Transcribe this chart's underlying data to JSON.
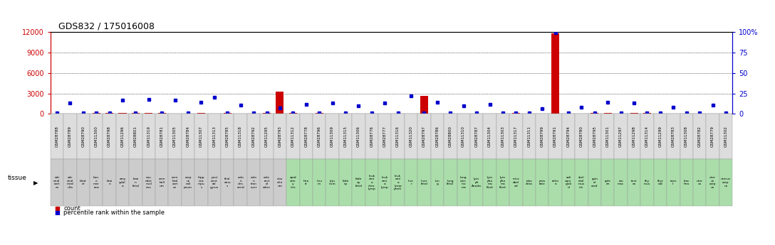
{
  "title": "GDS832 / 175016008",
  "left_color": "#cc0000",
  "right_color": "#0000cc",
  "left_ylim": [
    0,
    12000
  ],
  "right_ylim": [
    0,
    100
  ],
  "left_yticks": [
    0,
    3000,
    6000,
    9000,
    12000
  ],
  "right_yticks": [
    0,
    25,
    50,
    75,
    100
  ],
  "samples": [
    "GSM28788",
    "GSM28789",
    "GSM28790",
    "GSM11300",
    "GSM28798",
    "GSM11296",
    "GSM28801",
    "GSM11319",
    "GSM28781",
    "GSM11305",
    "GSM28784",
    "GSM11307",
    "GSM11313",
    "GSM28785",
    "GSM11318",
    "GSM28792",
    "GSM11295",
    "GSM28793",
    "GSM11312",
    "GSM28778",
    "GSM28796",
    "GSM11309",
    "GSM11315",
    "GSM11306",
    "GSM28776",
    "GSM28777",
    "GSM11316",
    "GSM11320",
    "GSM28797",
    "GSM28786",
    "GSM28800",
    "GSM11310",
    "GSM28787",
    "GSM11304",
    "GSM11303",
    "GSM11317",
    "GSM11311",
    "GSM28799",
    "GSM28791",
    "GSM28794",
    "GSM28780",
    "GSM28795",
    "GSM11301",
    "GSM11297",
    "GSM11298",
    "GSM11314",
    "GSM11299",
    "GSM28783",
    "GSM11308",
    "GSM28782",
    "GSM28779",
    "GSM11302"
  ],
  "tissue_short": [
    "adr\nenal\ncort\nex",
    "adr\nenal\nmed\nulla",
    "blad\ner",
    "bon\ne\nmar\nrow",
    "brai\nn",
    "amy\ngdal\na",
    "brai\nn\nfetal",
    "cau\ndate\nnucl\neus",
    "cere\nbell\num",
    "cere\nbral\ncort\nex",
    "corp\nus\ncali\npsum",
    "hipp\noca\nmpu\ns",
    "post\ncent\nral\ngyrus",
    "thal\namu\ns",
    "colo\nn\ndes\ncend",
    "colo\nn\ntran\nsver",
    "colo\nrect\nal\naden",
    "duo\nden\num",
    "epid\nerm\ny\nmis",
    "hea\nrt",
    "ileu\nm",
    "jeju\nnum",
    "kidn\ney",
    "kidn\ney\nfetal",
    "leuk\nemi\na\nchro\nlymp",
    "leuk\nemi\na\nlymp",
    "leuk\nemi\na\nlymp\nprom",
    "live\nr",
    "liver\nfetal",
    "lun\ng",
    "lung\nfetal",
    "lung\ncarc\nino\nma",
    "lym\nph\nAnoda",
    "lym\npho\nma\nBurk",
    "lym\npho\nma\nBurk",
    "misc\nabel\ned",
    "plac\nenta",
    "pros\ntate",
    "retin\na",
    "sali\nvary\nglan\nd",
    "skel\netal\nmus\ncle",
    "spin\nal\ncord",
    "sple\nen",
    "sto\nmac",
    "test\nes",
    "thy\nmus",
    "thyr\noid",
    "tons\nil",
    "trac\nhea",
    "uter\nus",
    "uter\nus\ncorp\nus",
    "uterus\ncorp\nus"
  ],
  "tissue_colors": [
    "#cccccc",
    "#cccccc",
    "#cccccc",
    "#cccccc",
    "#cccccc",
    "#cccccc",
    "#cccccc",
    "#cccccc",
    "#cccccc",
    "#cccccc",
    "#cccccc",
    "#cccccc",
    "#cccccc",
    "#cccccc",
    "#cccccc",
    "#cccccc",
    "#cccccc",
    "#cccccc",
    "#aaddaa",
    "#aaddaa",
    "#aaddaa",
    "#aaddaa",
    "#aaddaa",
    "#aaddaa",
    "#aaddaa",
    "#aaddaa",
    "#aaddaa",
    "#aaddaa",
    "#aaddaa",
    "#aaddaa",
    "#aaddaa",
    "#aaddaa",
    "#aaddaa",
    "#aaddaa",
    "#aaddaa",
    "#aaddaa",
    "#aaddaa",
    "#aaddaa",
    "#aaddaa",
    "#aaddaa",
    "#aaddaa",
    "#aaddaa",
    "#aaddaa",
    "#aaddaa",
    "#aaddaa",
    "#aaddaa",
    "#aaddaa",
    "#aaddaa",
    "#aaddaa",
    "#aaddaa",
    "#aaddaa",
    "#aaddaa"
  ],
  "counts": [
    50,
    80,
    60,
    100,
    120,
    100,
    100,
    100,
    100,
    80,
    90,
    100,
    80,
    100,
    60,
    80,
    100,
    3300,
    100,
    70,
    100,
    80,
    60,
    70,
    80,
    80,
    90,
    70,
    2600,
    70,
    70,
    80,
    80,
    80,
    80,
    100,
    80,
    80,
    11800,
    80,
    80,
    120,
    100,
    80,
    120,
    100,
    70,
    80,
    80,
    80,
    80,
    80
  ],
  "percentiles": [
    1,
    13,
    1,
    1,
    1,
    17,
    1,
    18,
    1,
    17,
    1,
    14,
    20,
    1,
    11,
    1,
    1,
    7,
    1,
    12,
    1,
    13,
    1,
    10,
    1,
    13,
    1,
    22,
    1,
    14,
    1,
    10,
    1,
    12,
    1,
    1,
    1,
    6,
    99,
    1,
    8,
    1,
    14,
    1,
    13,
    1,
    1,
    8,
    1,
    1,
    11,
    1
  ],
  "bg_color": "#ffffff",
  "bar_color": "#cc0000",
  "dot_color": "#0000cc"
}
